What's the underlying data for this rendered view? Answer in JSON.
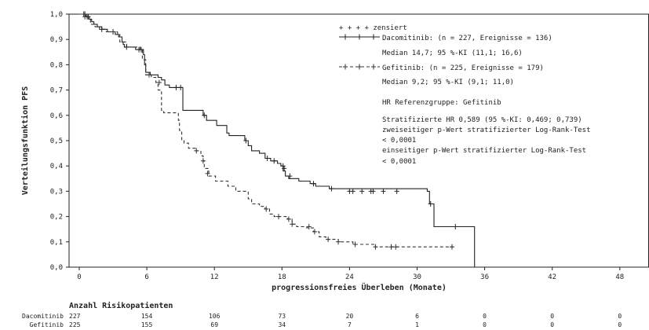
{
  "chart_data": {
    "type": "line",
    "title": "",
    "xlabel": "progressionsfreies Überleben (Monate)",
    "ylabel": "Verteilungsfunktion PFS",
    "xlim": [
      -2,
      50
    ],
    "ylim": [
      0,
      1.0
    ],
    "x_ticks": [
      "0",
      "6",
      "12",
      "18",
      "24",
      "30",
      "36",
      "42",
      "48"
    ],
    "y_ticks": [
      "0,0",
      "0,1",
      "0,2",
      "0,3",
      "0,4",
      "0,5",
      "0,6",
      "0,7",
      "0,8",
      "0,9",
      "1,0"
    ],
    "grid": false,
    "censor_label": "+ + + + zensiert",
    "series": [
      {
        "name": "Dacomitinib: (n = 227, Ereignisse = 136)",
        "color": "#222222",
        "style": "solid",
        "median_text": "Median 14,7; 95 %-KI (11,1; 16,6)",
        "steps": [
          [
            0,
            1.0
          ],
          [
            0.6,
            0.99
          ],
          [
            0.9,
            0.98
          ],
          [
            1.1,
            0.97
          ],
          [
            1.3,
            0.96
          ],
          [
            1.6,
            0.95
          ],
          [
            2.0,
            0.94
          ],
          [
            2.5,
            0.93
          ],
          [
            3.2,
            0.92
          ],
          [
            3.5,
            0.91
          ],
          [
            3.8,
            0.89
          ],
          [
            3.9,
            0.88
          ],
          [
            4.0,
            0.87
          ],
          [
            4.5,
            0.87
          ],
          [
            5.0,
            0.86
          ],
          [
            5.5,
            0.86
          ],
          [
            5.7,
            0.84
          ],
          [
            5.8,
            0.8
          ],
          [
            5.9,
            0.77
          ],
          [
            6.3,
            0.76
          ],
          [
            7.0,
            0.75
          ],
          [
            7.3,
            0.74
          ],
          [
            7.6,
            0.72
          ],
          [
            8.0,
            0.71
          ],
          [
            8.5,
            0.71
          ],
          [
            9.0,
            0.71
          ],
          [
            9.2,
            0.62
          ],
          [
            10.8,
            0.62
          ],
          [
            11.0,
            0.6
          ],
          [
            11.3,
            0.58
          ],
          [
            12.2,
            0.56
          ],
          [
            13.1,
            0.53
          ],
          [
            13.3,
            0.52
          ],
          [
            14.7,
            0.5
          ],
          [
            15.0,
            0.48
          ],
          [
            15.3,
            0.46
          ],
          [
            16.0,
            0.45
          ],
          [
            16.5,
            0.43
          ],
          [
            17.0,
            0.42
          ],
          [
            17.6,
            0.41
          ],
          [
            17.9,
            0.4
          ],
          [
            18.1,
            0.38
          ],
          [
            18.3,
            0.36
          ],
          [
            18.6,
            0.35
          ],
          [
            19.5,
            0.34
          ],
          [
            20.5,
            0.33
          ],
          [
            21.0,
            0.32
          ],
          [
            22.2,
            0.31
          ],
          [
            30.9,
            0.3
          ],
          [
            31.1,
            0.25
          ],
          [
            31.5,
            0.16
          ],
          [
            35.1,
            0.16
          ],
          [
            35.1,
            0.0
          ]
        ],
        "censored": [
          [
            0.4,
            1.0
          ],
          [
            0.5,
            1.0
          ],
          [
            0.7,
            0.99
          ],
          [
            0.8,
            0.99
          ],
          [
            2.0,
            0.94
          ],
          [
            3.0,
            0.93
          ],
          [
            4.2,
            0.87
          ],
          [
            5.3,
            0.86
          ],
          [
            5.5,
            0.86
          ],
          [
            8.6,
            0.71
          ],
          [
            9.0,
            0.71
          ],
          [
            11.1,
            0.6
          ],
          [
            14.8,
            0.5
          ],
          [
            16.7,
            0.43
          ],
          [
            17.3,
            0.42
          ],
          [
            18.1,
            0.4
          ],
          [
            18.2,
            0.39
          ],
          [
            18.7,
            0.36
          ],
          [
            20.8,
            0.33
          ],
          [
            22.4,
            0.31
          ],
          [
            24.0,
            0.3
          ],
          [
            24.3,
            0.3
          ],
          [
            25.1,
            0.3
          ],
          [
            25.9,
            0.3
          ],
          [
            26.1,
            0.3
          ],
          [
            27.0,
            0.3
          ],
          [
            28.2,
            0.3
          ],
          [
            31.2,
            0.25
          ],
          [
            33.4,
            0.16
          ]
        ]
      },
      {
        "name": "Gefitinib: (n = 225, Ereignisse = 179)",
        "color": "#333333",
        "style": "dashed",
        "median_text": "Median 9,2; 95 %-KI (9,1; 11,0)",
        "steps": [
          [
            0,
            1.0
          ],
          [
            0.8,
            0.98
          ],
          [
            1.0,
            0.96
          ],
          [
            1.4,
            0.95
          ],
          [
            1.8,
            0.94
          ],
          [
            2.4,
            0.93
          ],
          [
            3.4,
            0.92
          ],
          [
            3.6,
            0.89
          ],
          [
            4.2,
            0.87
          ],
          [
            5.4,
            0.86
          ],
          [
            5.6,
            0.82
          ],
          [
            5.9,
            0.76
          ],
          [
            6.4,
            0.75
          ],
          [
            6.8,
            0.73
          ],
          [
            7.0,
            0.7
          ],
          [
            7.3,
            0.62
          ],
          [
            7.5,
            0.61
          ],
          [
            8.8,
            0.58
          ],
          [
            8.9,
            0.54
          ],
          [
            9.1,
            0.5
          ],
          [
            9.3,
            0.49
          ],
          [
            9.7,
            0.47
          ],
          [
            10.3,
            0.46
          ],
          [
            10.8,
            0.44
          ],
          [
            11.0,
            0.42
          ],
          [
            11.1,
            0.39
          ],
          [
            11.5,
            0.36
          ],
          [
            12.1,
            0.34
          ],
          [
            13.2,
            0.32
          ],
          [
            13.9,
            0.3
          ],
          [
            15.0,
            0.27
          ],
          [
            15.3,
            0.25
          ],
          [
            16.0,
            0.24
          ],
          [
            16.5,
            0.23
          ],
          [
            16.9,
            0.21
          ],
          [
            17.3,
            0.2
          ],
          [
            18.5,
            0.19
          ],
          [
            18.9,
            0.17
          ],
          [
            19.3,
            0.16
          ],
          [
            20.2,
            0.155
          ],
          [
            20.8,
            0.14
          ],
          [
            21.3,
            0.12
          ],
          [
            21.9,
            0.11
          ],
          [
            23.0,
            0.1
          ],
          [
            24.3,
            0.09
          ],
          [
            26.3,
            0.08
          ],
          [
            33.2,
            0.08
          ]
        ],
        "censored": [
          [
            0.5,
            0.99
          ],
          [
            6.2,
            0.76
          ],
          [
            7.1,
            0.73
          ],
          [
            10.4,
            0.46
          ],
          [
            11.0,
            0.42
          ],
          [
            11.4,
            0.37
          ],
          [
            16.6,
            0.23
          ],
          [
            17.7,
            0.2
          ],
          [
            18.6,
            0.19
          ],
          [
            18.9,
            0.17
          ],
          [
            20.4,
            0.16
          ],
          [
            20.9,
            0.14
          ],
          [
            22.1,
            0.11
          ],
          [
            23.0,
            0.1
          ],
          [
            24.5,
            0.09
          ],
          [
            26.3,
            0.08
          ],
          [
            27.7,
            0.08
          ],
          [
            28.1,
            0.08
          ],
          [
            33.1,
            0.08
          ]
        ]
      }
    ],
    "annotations": {
      "hr_reference": "HR Referenzgruppe:  Gefitinib",
      "stratified_hr": "Stratifizierte HR 0,589 (95 %-KI: 0,469; 0,739)",
      "two_sided_label": "zweiseitiger p-Wert stratifizierter Log-Rank-Test",
      "two_sided_value": "< 0,0001",
      "one_sided_label": "einseitiger p-Wert stratifizierter Log-Rank-Test",
      "one_sided_value": "< 0,0001"
    },
    "risk_table": {
      "title": "Anzahl Risikopatienten",
      "rows": [
        {
          "label": "Dacomitinib",
          "values": [
            "227",
            "154",
            "106",
            "73",
            "20",
            "6",
            "0",
            "0",
            "0"
          ]
        },
        {
          "label": "Gefitinib",
          "values": [
            "225",
            "155",
            "69",
            "34",
            "7",
            "1",
            "0",
            "0",
            "0"
          ]
        }
      ]
    }
  }
}
